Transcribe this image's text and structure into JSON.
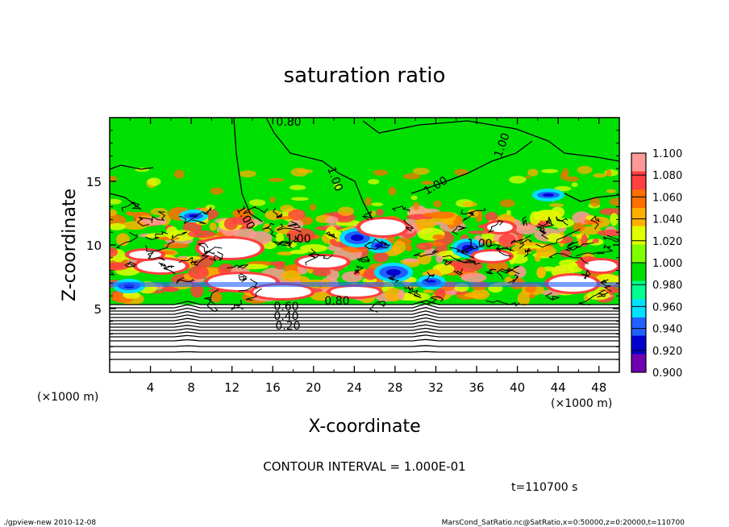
{
  "chart_data": {
    "type": "heatmap",
    "title": "saturation ratio",
    "xlabel": "X-coordinate",
    "ylabel": "Z-coordinate",
    "x_unit": "(×1000 m)",
    "y_unit": "(×1000 m)",
    "xlim": [
      0,
      50
    ],
    "ylim": [
      0,
      20
    ],
    "x_ticks": [
      "4",
      "8",
      "12",
      "16",
      "20",
      "24",
      "28",
      "32",
      "36",
      "40",
      "44",
      "48"
    ],
    "y_ticks": [
      "5",
      "10",
      "15"
    ],
    "colorbar_labels": [
      "1.100",
      "1.080",
      "1.060",
      "1.040",
      "1.020",
      "1.000",
      "0.980",
      "0.960",
      "0.940",
      "0.920",
      "0.900"
    ],
    "colorbar_colors": [
      "#ff9898",
      "#ff4040",
      "#ff7000",
      "#ffb000",
      "#e0ff00",
      "#80ff00",
      "#00e000",
      "#00ff90",
      "#00e0ff",
      "#2060ff",
      "#0000d0",
      "#7000b0"
    ],
    "contour_labels": [
      "0.80",
      "1.00",
      "1.00",
      "1.00",
      "1.00",
      "1.00",
      "1.00",
      "0.80",
      "0.60",
      "0.40",
      "0.20"
    ],
    "contour_interval": "CONTOUR INTERVAL = 1.000E-01",
    "time_label": "t=110700 s",
    "background_color": "#00e000",
    "saturated_color": "#ffffff",
    "notes_footer_left": "./gpview-new   2010-12-08",
    "notes_footer_right": "MarsCond_SatRatio.nc@SatRatio,x=0:50000,z=0:20000,t=110700"
  }
}
